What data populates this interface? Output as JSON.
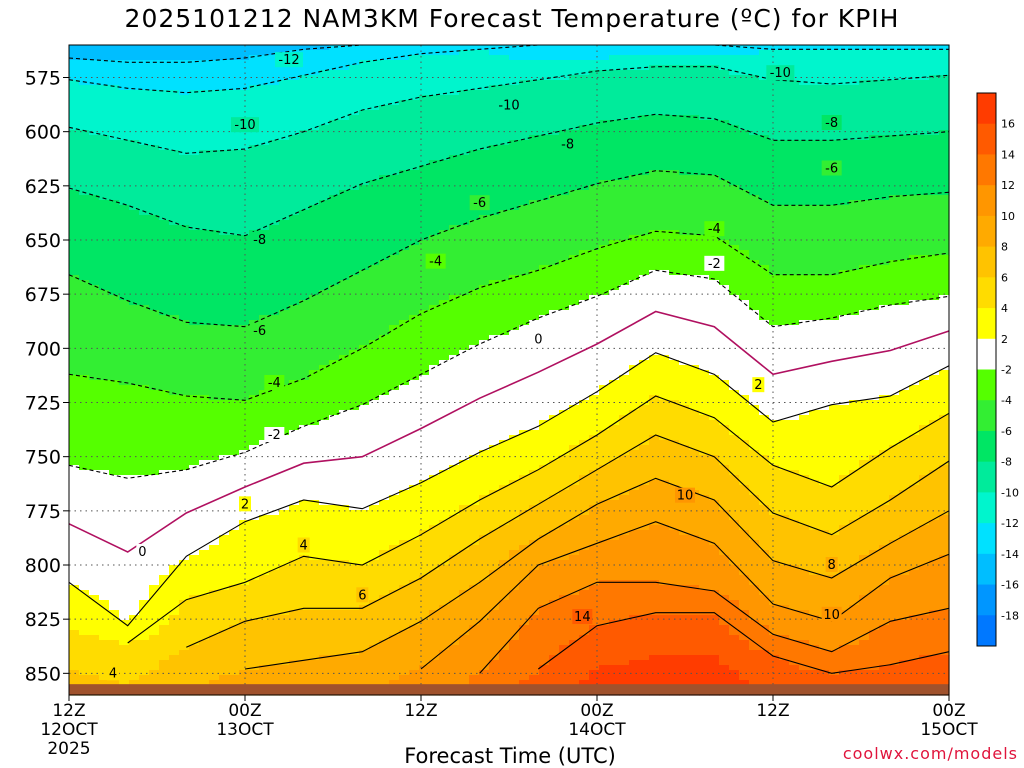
{
  "title": "2025101212 NAM3KM Forecast Temperature (ºC) for KPIH",
  "xlabel": "Forecast Time (UTC)",
  "credit": "coolwx.com/models",
  "colors": {
    "ground": "#a0522d",
    "freezing_line": "#b01060",
    "grid": "#555555"
  },
  "chart_data": {
    "type": "heatmap",
    "variable": "Temperature (ºC)",
    "y_axis": {
      "scale": "pressure (inverted, hPa)",
      "range": [
        560,
        860
      ],
      "ticks": [
        575,
        600,
        625,
        650,
        675,
        700,
        725,
        750,
        775,
        800,
        825,
        850
      ]
    },
    "x_axis": {
      "range_hours": [
        0,
        60
      ],
      "ticks": [
        {
          "h": 0,
          "lines": [
            "12Z",
            "12OCT",
            "2025"
          ]
        },
        {
          "h": 12,
          "lines": [
            "00Z",
            "13OCT"
          ]
        },
        {
          "h": 24,
          "lines": [
            "12Z"
          ]
        },
        {
          "h": 36,
          "lines": [
            "00Z",
            "14OCT"
          ]
        },
        {
          "h": 48,
          "lines": [
            "12Z"
          ]
        },
        {
          "h": 60,
          "lines": [
            "00Z",
            "15OCT"
          ]
        }
      ]
    },
    "grid": "dotted",
    "colorbar": {
      "position": "right",
      "labels": [
        16,
        14,
        12,
        10,
        8,
        6,
        4,
        2,
        -2,
        -4,
        -6,
        -8,
        -10,
        -12,
        -14,
        -16,
        -18
      ],
      "bins": [
        {
          "lo": 16,
          "hi": 18,
          "color": "#ff3c00"
        },
        {
          "lo": 14,
          "hi": 16,
          "color": "#ff5a00"
        },
        {
          "lo": 12,
          "hi": 14,
          "color": "#ff7800"
        },
        {
          "lo": 10,
          "hi": 12,
          "color": "#ff9600"
        },
        {
          "lo": 8,
          "hi": 10,
          "color": "#ffaa00"
        },
        {
          "lo": 6,
          "hi": 8,
          "color": "#ffc300"
        },
        {
          "lo": 4,
          "hi": 6,
          "color": "#ffdc00"
        },
        {
          "lo": 2,
          "hi": 4,
          "color": "#ffff00"
        },
        {
          "lo": -2,
          "hi": 2,
          "color": "#ffffff"
        },
        {
          "lo": -4,
          "hi": -2,
          "color": "#55ff00"
        },
        {
          "lo": -6,
          "hi": -4,
          "color": "#33ee33"
        },
        {
          "lo": -8,
          "hi": -6,
          "color": "#00e664"
        },
        {
          "lo": -10,
          "hi": -8,
          "color": "#00eb9b"
        },
        {
          "lo": -12,
          "hi": -10,
          "color": "#00f5cd"
        },
        {
          "lo": -14,
          "hi": -12,
          "color": "#00e1ff"
        },
        {
          "lo": -16,
          "hi": -14,
          "color": "#00beff"
        },
        {
          "lo": -18,
          "hi": -16,
          "color": "#0096ff"
        },
        {
          "lo": -20,
          "hi": -18,
          "color": "#0078ff"
        }
      ]
    },
    "isotherm_profiles": {
      "hours": [
        0,
        4,
        8,
        12,
        16,
        20,
        24,
        28,
        32,
        36,
        40,
        44,
        48,
        52,
        56,
        60
      ],
      "levels": [
        {
          "t": 14,
          "p": [
            null,
            null,
            null,
            null,
            null,
            null,
            null,
            null,
            848,
            828,
            822,
            822,
            842,
            850,
            846,
            840
          ]
        },
        {
          "t": 12,
          "p": [
            null,
            null,
            null,
            null,
            null,
            null,
            null,
            850,
            820,
            808,
            808,
            812,
            832,
            840,
            826,
            820
          ]
        },
        {
          "t": 10,
          "p": [
            null,
            null,
            null,
            null,
            null,
            null,
            848,
            826,
            800,
            790,
            780,
            790,
            818,
            826,
            806,
            795
          ]
        },
        {
          "t": 8,
          "p": [
            null,
            null,
            null,
            848,
            844,
            840,
            826,
            808,
            788,
            772,
            760,
            770,
            798,
            806,
            790,
            775
          ]
        },
        {
          "t": 6,
          "p": [
            null,
            null,
            838,
            826,
            820,
            820,
            806,
            788,
            772,
            756,
            740,
            750,
            776,
            786,
            770,
            752
          ]
        },
        {
          "t": 4,
          "p": [
            null,
            836,
            816,
            808,
            796,
            800,
            786,
            770,
            756,
            740,
            722,
            732,
            754,
            764,
            746,
            730
          ]
        },
        {
          "t": 2,
          "p": [
            808,
            828,
            796,
            780,
            770,
            774,
            762,
            748,
            736,
            720,
            702,
            712,
            734,
            726,
            722,
            708
          ]
        },
        {
          "t": -2,
          "p": [
            754,
            760,
            756,
            748,
            736,
            726,
            712,
            698,
            686,
            676,
            664,
            668,
            690,
            686,
            680,
            676
          ]
        },
        {
          "t": -4,
          "p": [
            712,
            716,
            722,
            724,
            714,
            700,
            684,
            672,
            664,
            654,
            646,
            648,
            666,
            666,
            660,
            656
          ]
        },
        {
          "t": -6,
          "p": [
            666,
            678,
            688,
            690,
            678,
            664,
            650,
            640,
            632,
            624,
            618,
            620,
            634,
            634,
            630,
            628
          ]
        },
        {
          "t": -8,
          "p": [
            626,
            634,
            644,
            648,
            636,
            624,
            616,
            608,
            602,
            596,
            592,
            594,
            604,
            604,
            602,
            600
          ]
        },
        {
          "t": -10,
          "p": [
            598,
            604,
            610,
            608,
            600,
            590,
            584,
            580,
            576,
            572,
            570,
            570,
            576,
            578,
            576,
            574
          ]
        },
        {
          "t": -12,
          "p": [
            576,
            580,
            582,
            580,
            574,
            568,
            564,
            562,
            560,
            560,
            560,
            560,
            562,
            562,
            562,
            562
          ]
        },
        {
          "t": -14,
          "p": [
            566,
            568,
            568,
            566,
            562,
            560,
            560,
            560,
            560,
            560,
            560,
            560,
            560,
            560,
            560,
            560
          ]
        }
      ]
    },
    "surface_pressure": 855,
    "contour_labels": [
      {
        "text": "-12",
        "h": 15,
        "p": 567
      },
      {
        "text": "-10",
        "h": 12,
        "p": 597
      },
      {
        "text": "-10",
        "h": 30,
        "p": 588
      },
      {
        "text": "-10",
        "h": 48.5,
        "p": 573
      },
      {
        "text": "-8",
        "h": 34,
        "p": 606
      },
      {
        "text": "-8",
        "h": 52,
        "p": 596
      },
      {
        "text": "-8",
        "h": 13,
        "p": 650
      },
      {
        "text": "-6",
        "h": 28,
        "p": 633
      },
      {
        "text": "-6",
        "h": 52,
        "p": 617
      },
      {
        "text": "-6",
        "h": 13,
        "p": 692
      },
      {
        "text": "-4",
        "h": 25,
        "p": 660
      },
      {
        "text": "-4",
        "h": 44,
        "p": 645
      },
      {
        "text": "-4",
        "h": 14,
        "p": 716
      },
      {
        "text": "-2",
        "h": 14,
        "p": 740
      },
      {
        "text": "-2",
        "h": 44,
        "p": 661
      },
      {
        "text": "0",
        "h": 5,
        "p": 794
      },
      {
        "text": "0",
        "h": 32,
        "p": 696
      },
      {
        "text": "2",
        "h": 12,
        "p": 772
      },
      {
        "text": "2",
        "h": 47,
        "p": 717
      },
      {
        "text": "4",
        "h": 16,
        "p": 791
      },
      {
        "text": "6",
        "h": 20,
        "p": 814
      },
      {
        "text": "8",
        "h": 52,
        "p": 800
      },
      {
        "text": "10",
        "h": 42,
        "p": 768
      },
      {
        "text": "10",
        "h": 52,
        "p": 823
      },
      {
        "text": "14",
        "h": 35,
        "p": 824
      },
      {
        "text": "4",
        "h": 3,
        "p": 850
      }
    ]
  }
}
